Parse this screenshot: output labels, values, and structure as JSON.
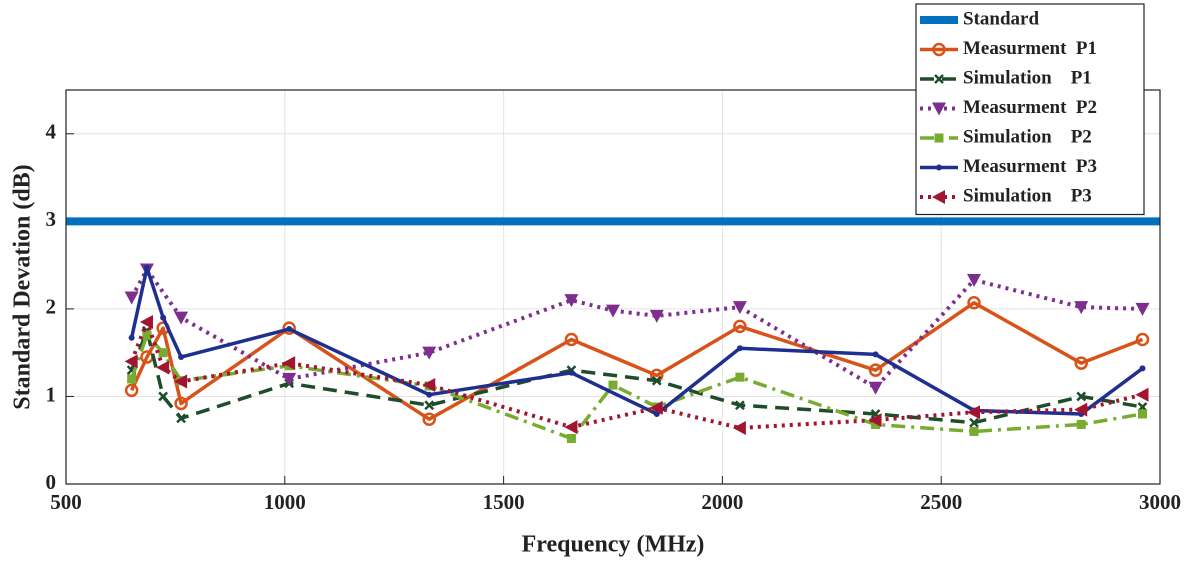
{
  "chart_data": {
    "type": "line",
    "xlabel": "Frequency (MHz)",
    "ylabel": "Standard Devation (dB)",
    "xlim": [
      500,
      3000
    ],
    "ylim": [
      0,
      4.5
    ],
    "xticks": [
      500,
      1000,
      1500,
      2000,
      2500,
      3000
    ],
    "yticks": [
      0,
      1,
      2,
      3,
      4
    ],
    "grid": true,
    "legend": "top-right-outside",
    "series": [
      {
        "name": "Standard",
        "color": "#0072bd",
        "dash": "solid",
        "marker": "none",
        "width": 8,
        "x": [
          500,
          3000
        ],
        "values": [
          3,
          3
        ]
      },
      {
        "name": "Measurment  P1",
        "color": "#d95319",
        "dash": "solid",
        "marker": "circle",
        "width": 3.5,
        "x": [
          650,
          685,
          722,
          763,
          1010,
          1330,
          1655,
          1850,
          2040,
          2350,
          2575,
          2820,
          2960
        ],
        "values": [
          1.07,
          1.45,
          1.78,
          0.92,
          1.78,
          0.74,
          1.65,
          1.24,
          1.8,
          1.3,
          2.07,
          1.38,
          1.65
        ]
      },
      {
        "name": "Simulation    P1",
        "color": "#1e4d2b",
        "dash": "dashed",
        "marker": "x",
        "width": 3.5,
        "x": [
          650,
          685,
          722,
          763,
          1010,
          1330,
          1655,
          1850,
          2040,
          2350,
          2575,
          2820,
          2960
        ],
        "values": [
          1.3,
          1.75,
          1.0,
          0.75,
          1.15,
          0.9,
          1.3,
          1.18,
          0.9,
          0.8,
          0.7,
          1.0,
          0.88
        ]
      },
      {
        "name": "Measurment  P2",
        "color": "#7e2f8e",
        "dash": "dotted",
        "marker": "triangle-down",
        "width": 4,
        "x": [
          650,
          685,
          763,
          1010,
          1330,
          1655,
          1750,
          1850,
          2040,
          2350,
          2575,
          2820,
          2960
        ],
        "values": [
          2.13,
          2.45,
          1.9,
          1.2,
          1.5,
          2.1,
          1.98,
          1.92,
          2.02,
          1.1,
          2.33,
          2.02,
          2.0
        ]
      },
      {
        "name": "Simulation    P2",
        "color": "#77ac30",
        "dash": "dashdot",
        "marker": "square",
        "width": 3.5,
        "x": [
          650,
          685,
          722,
          763,
          1010,
          1330,
          1655,
          1750,
          1850,
          2040,
          2350,
          2575,
          2820,
          2960
        ],
        "values": [
          1.2,
          1.7,
          1.5,
          1.18,
          1.35,
          1.12,
          0.52,
          1.13,
          0.88,
          1.22,
          0.68,
          0.6,
          0.68,
          0.8
        ]
      },
      {
        "name": "Measurment  P3",
        "color": "#1f2f8f",
        "dash": "solid",
        "marker": "dot",
        "width": 3.5,
        "x": [
          650,
          685,
          722,
          763,
          1010,
          1330,
          1655,
          1850,
          2040,
          2350,
          2575,
          2820,
          2960
        ],
        "values": [
          1.67,
          2.47,
          1.9,
          1.45,
          1.77,
          1.02,
          1.27,
          0.8,
          1.55,
          1.48,
          0.84,
          0.8,
          1.32
        ]
      },
      {
        "name": "Simulation    P3",
        "color": "#a2142f",
        "dash": "dotted",
        "marker": "triangle-left",
        "width": 4,
        "x": [
          650,
          685,
          722,
          763,
          1010,
          1330,
          1655,
          1850,
          2040,
          2350,
          2575,
          2820,
          2960
        ],
        "values": [
          1.4,
          1.85,
          1.33,
          1.17,
          1.38,
          1.13,
          0.65,
          0.87,
          0.64,
          0.73,
          0.82,
          0.85,
          1.02
        ]
      }
    ]
  }
}
